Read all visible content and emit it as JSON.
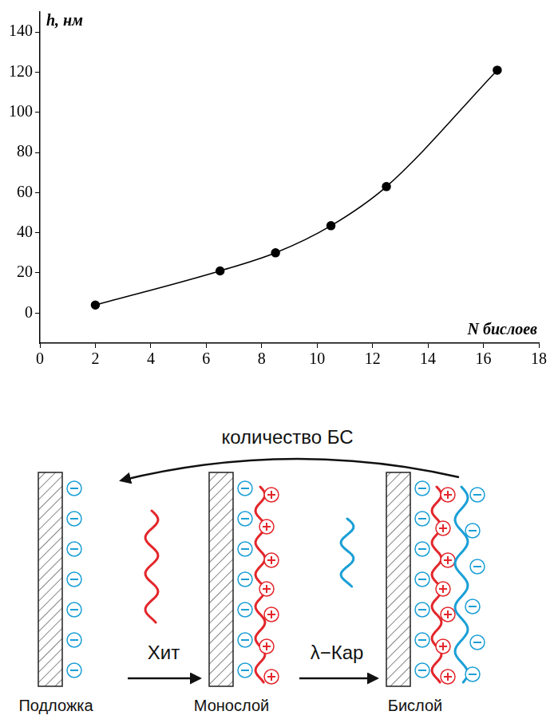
{
  "chart_data": {
    "type": "line",
    "x": [
      2,
      6.5,
      8.5,
      10.5,
      12.5,
      16.5
    ],
    "values": [
      4,
      21,
      30,
      43.5,
      63,
      121
    ],
    "xlabel": "N бислоев",
    "ylabel": "h, нм",
    "xlim": [
      0,
      18
    ],
    "xticks": [
      0,
      2,
      4,
      6,
      8,
      10,
      12,
      14,
      16,
      18
    ],
    "ylim": [
      -15,
      150
    ],
    "yticks": [
      0,
      20,
      40,
      60,
      80,
      100,
      120,
      140
    ],
    "color": "#000000",
    "marker": "circle",
    "line_style": "solid",
    "grid": false
  },
  "diagram": {
    "top_arrow": "количество БС",
    "steps": [
      "Хит",
      "λ−Кар"
    ],
    "stages": [
      "Подложка",
      "Монослой",
      "Бислой"
    ]
  }
}
